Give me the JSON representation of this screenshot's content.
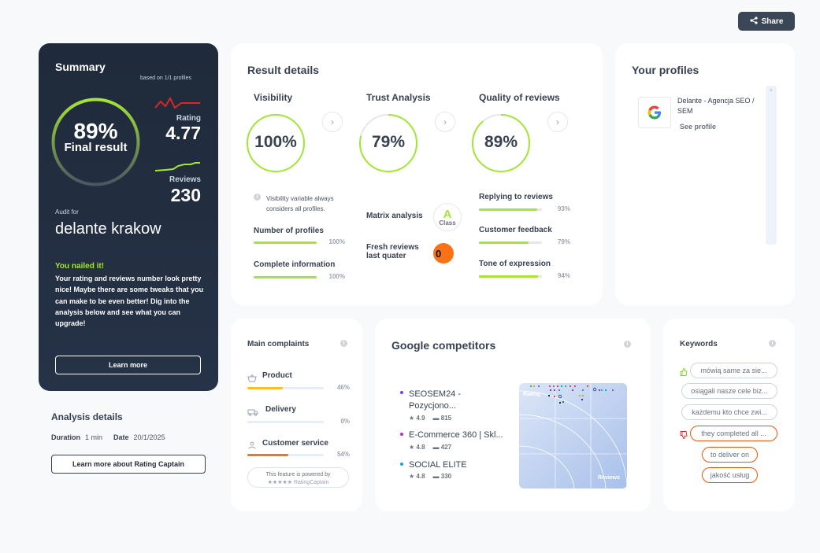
{
  "share": {
    "label": "Share"
  },
  "summary": {
    "title": "Summary",
    "based_on": "based on 1/1 profiles",
    "final_pct": "89%",
    "final_pct_value": 89,
    "final_label": "Final result",
    "rating_label": "Rating",
    "rating_value": "4.77",
    "reviews_label": "Reviews",
    "reviews_value": "230",
    "audit_for": "Audit for",
    "audit_name": "delante krakow",
    "nailed_title": "You nailed it!",
    "nailed_text": "Your rating and reviews number look pretty nice! Maybe there are some tweaks that you can make to be even better! Dig into the analysis below and see what you can upgrade!",
    "learn_more": "Learn more"
  },
  "analysis": {
    "title": "Analysis details",
    "duration_label": "Duration",
    "duration_value": "1 min",
    "date_label": "Date",
    "date_value": "20/1/2025",
    "button": "Learn more about Rating Captain"
  },
  "result_details": {
    "title": "Result details",
    "visibility": {
      "title": "Visibility",
      "pct": "100%",
      "value": 100,
      "note": "Visibility variable always considers all profiles.",
      "metrics": [
        {
          "label": "Number of profiles",
          "pct": "100%",
          "value": 100
        },
        {
          "label": "Complete information",
          "pct": "100%",
          "value": 100
        }
      ]
    },
    "trust": {
      "title": "Trust Analysis",
      "pct": "79%",
      "value": 79,
      "matrix_label": "Matrix analysis",
      "matrix_grade": "A",
      "matrix_class": "Class",
      "fresh_label": "Fresh reviews last quater",
      "fresh_value": "0"
    },
    "quality": {
      "title": "Quality of reviews",
      "pct": "89%",
      "value": 89,
      "metrics": [
        {
          "label": "Replying to reviews",
          "pct": "93%",
          "value": 93
        },
        {
          "label": "Customer feedback",
          "pct": "79%",
          "value": 79
        },
        {
          "label": "Tone of expression",
          "pct": "94%",
          "value": 94
        }
      ]
    }
  },
  "profiles": {
    "title": "Your profiles",
    "items": [
      {
        "name": "Delante - Agencja SEO / SEM",
        "link": "See profile",
        "icon": "google-icon"
      }
    ]
  },
  "complaints": {
    "title": "Main complaints",
    "items": [
      {
        "label": "Product",
        "pct": "46%",
        "value": 46,
        "icon": "basket-icon"
      },
      {
        "label": "Delivery",
        "pct": "0%",
        "value": 0,
        "icon": "truck-icon"
      },
      {
        "label": "Customer service",
        "pct": "54%",
        "value": 54,
        "icon": "person-icon"
      }
    ],
    "powered_by": "This feature is powered by",
    "powered_brand": "RatingCaptain",
    "colors": {
      "product": "#fbbf24",
      "service": "#f97316"
    }
  },
  "competitors": {
    "title": "Google competitors",
    "items": [
      {
        "name": "SEOSEM24 - Pozycjono...",
        "rating": "4.9",
        "reviews": "815",
        "dot": "#7c3aed"
      },
      {
        "name": "E-Commerce 360 | Skl...",
        "rating": "4.8",
        "reviews": "427",
        "dot": "#c026d3"
      },
      {
        "name": "SOCIAL ELITE",
        "rating": "4.8",
        "reviews": "330",
        "dot": "#0ea5e9"
      }
    ],
    "chart_y_label": "Rating",
    "chart_x_label": "Reviews"
  },
  "keywords": {
    "title": "Keywords",
    "positive": [
      "mówią same za sie...",
      "osiągali nasze cele biz...",
      "każdemu kto chce zwi..."
    ],
    "negative": [
      "they completed all ...",
      "to deliver on",
      "jakość usług"
    ]
  }
}
